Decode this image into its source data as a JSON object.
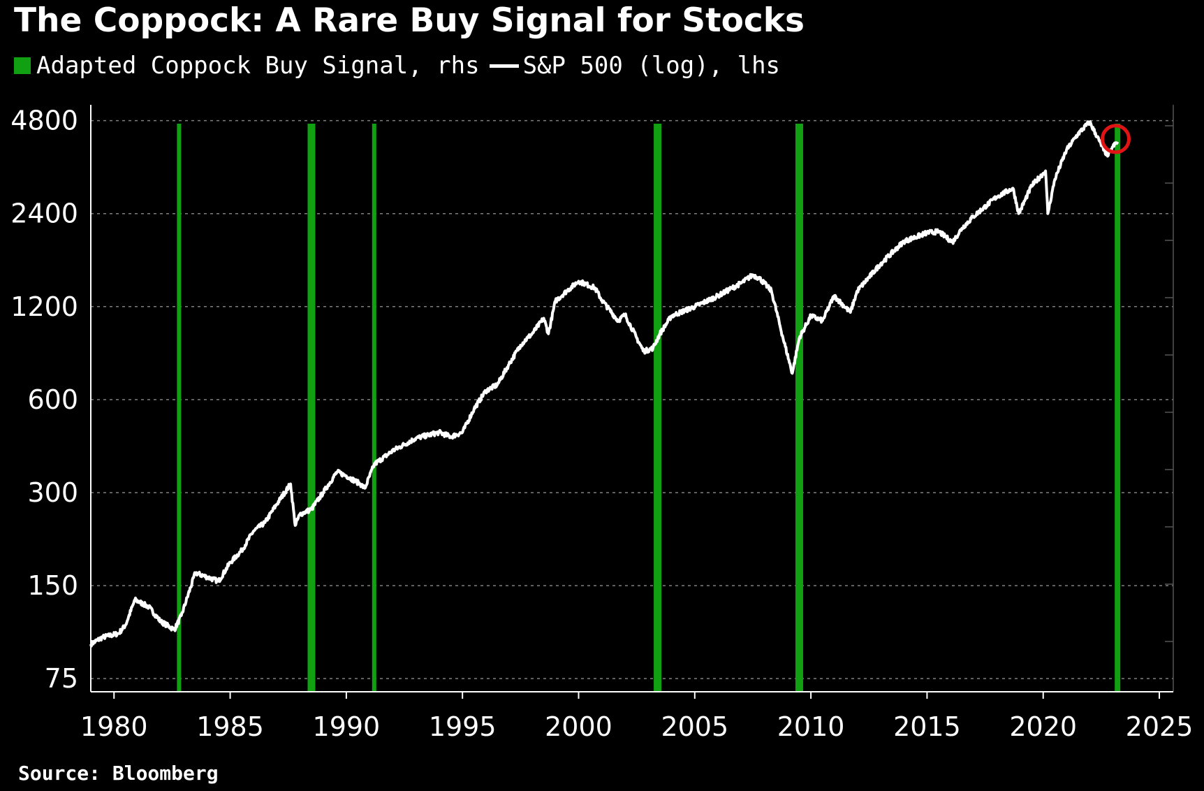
{
  "header": {
    "title": "The Coppock: A Rare Buy Signal for Stocks",
    "legend_signal": "Adapted Coppock Buy Signal, rhs",
    "legend_sp": "S&P 500 (log), lhs"
  },
  "footer": {
    "source": "Source: Bloomberg"
  },
  "colors": {
    "background": "#000000",
    "signal": "#11A011",
    "line": "#FFFFFF",
    "highlight": "#E01414",
    "grid": "#808080"
  },
  "chart_data": {
    "type": "line",
    "title": "The Coppock: A Rare Buy Signal for Stocks",
    "y_scale": "log",
    "ylim": [
      68,
      5400
    ],
    "xlim": [
      1979.0,
      2025.6
    ],
    "y_ticks": [
      75,
      150,
      300,
      600,
      1200,
      2400,
      4800
    ],
    "x_ticks": [
      1980,
      1985,
      1990,
      1995,
      2000,
      2005,
      2010,
      2015,
      2020,
      2025
    ],
    "grid": "horizontal dashed",
    "series": [
      {
        "name": "S&P 500 (log), lhs",
        "axis": "left",
        "x": [
          1979.0,
          1979.5,
          1980.2,
          1980.5,
          1980.9,
          1981.5,
          1982.0,
          1982.6,
          1982.9,
          1983.5,
          1984.0,
          1984.5,
          1985.0,
          1985.5,
          1986.0,
          1986.5,
          1987.0,
          1987.6,
          1987.8,
          1988.0,
          1988.5,
          1989.0,
          1989.6,
          1990.0,
          1990.6,
          1990.8,
          1991.2,
          1992.0,
          1993.0,
          1994.0,
          1994.5,
          1995.0,
          1995.5,
          1996.0,
          1996.5,
          1997.0,
          1997.5,
          1997.8,
          1998.0,
          1998.5,
          1998.7,
          1999.0,
          1999.5,
          2000.0,
          2000.2,
          2000.7,
          2001.0,
          2001.7,
          2002.0,
          2002.5,
          2002.8,
          2003.2,
          2003.5,
          2004.0,
          2005.0,
          2006.0,
          2007.0,
          2007.5,
          2007.8,
          2008.3,
          2008.8,
          2009.2,
          2009.5,
          2010.0,
          2010.5,
          2011.0,
          2011.7,
          2012.0,
          2013.0,
          2014.0,
          2015.0,
          2015.5,
          2016.1,
          2016.5,
          2017.0,
          2018.0,
          2018.7,
          2018.95,
          2019.5,
          2020.1,
          2020.2,
          2020.5,
          2021.0,
          2021.5,
          2022.0,
          2022.4,
          2022.6,
          2022.8,
          2023.0,
          2023.2
        ],
        "values": [
          97,
          102,
          105,
          112,
          135,
          128,
          115,
          108,
          120,
          165,
          160,
          155,
          178,
          195,
          225,
          240,
          275,
          320,
          235,
          255,
          265,
          300,
          350,
          340,
          320,
          310,
          370,
          410,
          450,
          470,
          455,
          470,
          560,
          640,
          670,
          780,
          900,
          950,
          980,
          1100,
          980,
          1250,
          1350,
          1450,
          1430,
          1380,
          1260,
          1080,
          1130,
          950,
          860,
          880,
          980,
          1120,
          1200,
          1300,
          1430,
          1520,
          1480,
          1350,
          950,
          730,
          950,
          1120,
          1080,
          1300,
          1150,
          1350,
          1650,
          1950,
          2080,
          2100,
          1940,
          2150,
          2350,
          2720,
          2900,
          2400,
          2950,
          3300,
          2400,
          3100,
          3850,
          4350,
          4750,
          4150,
          3850,
          3700,
          3950,
          4100
        ]
      },
      {
        "name": "Adapted Coppock Buy Signal, rhs",
        "axis": "right",
        "signal_dates": [
          1982.8,
          1988.5,
          1991.2,
          2003.4,
          2009.5,
          2023.2
        ]
      }
    ],
    "annotations": [
      {
        "type": "circle",
        "x": 2023.0,
        "y": 4100
      }
    ]
  }
}
